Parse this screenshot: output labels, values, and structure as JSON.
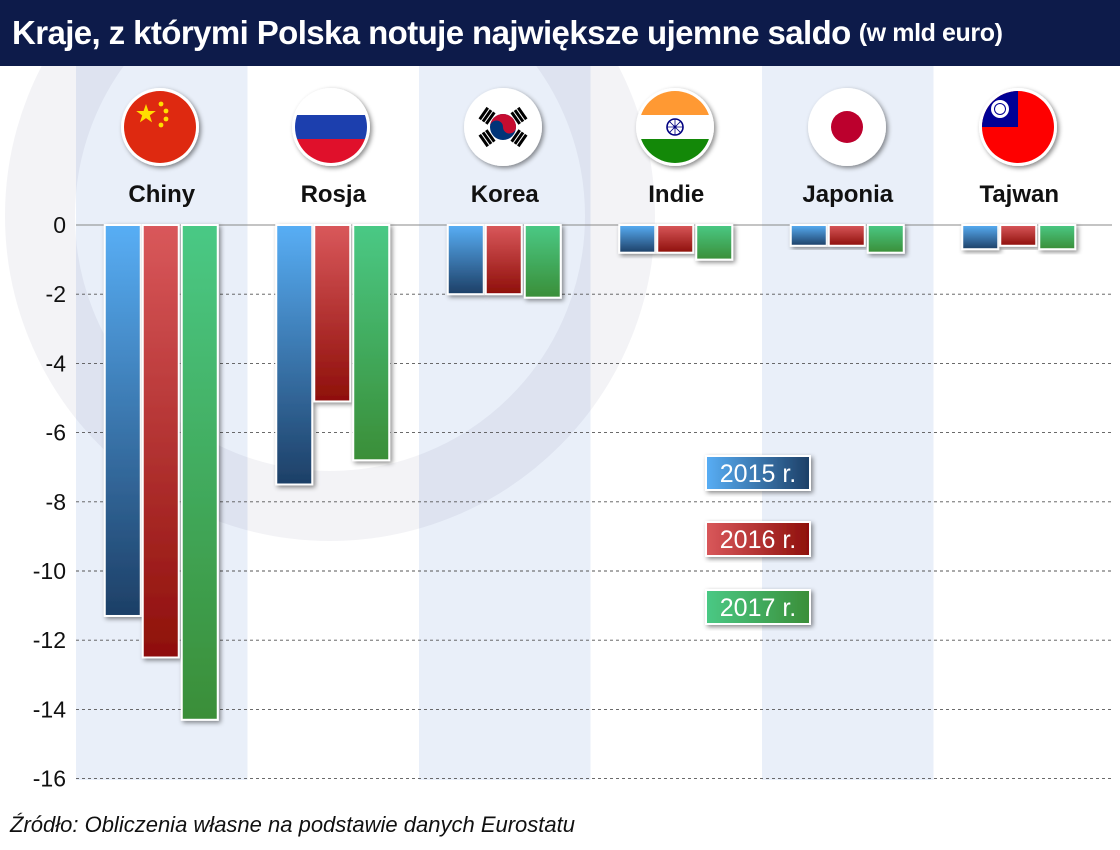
{
  "header": {
    "title": "Kraje, z którymi Polska notuje największe ujemne saldo",
    "unit": "(w mld euro)"
  },
  "source": "Źródło: Obliczenia własne na podstawie danych Eurostatu",
  "chart_data": {
    "type": "bar",
    "categories": [
      "Chiny",
      "Rosja",
      "Korea",
      "Indie",
      "Japonia",
      "Tajwan"
    ],
    "flags": [
      "china-flag-icon",
      "russia-flag-icon",
      "south-korea-flag-icon",
      "india-flag-icon",
      "japan-flag-icon",
      "taiwan-flag-icon"
    ],
    "series": [
      {
        "name": "2015 r.",
        "color": "#3d8fd8",
        "values": [
          -11.3,
          -7.5,
          -2.0,
          -0.8,
          -0.6,
          -0.7
        ]
      },
      {
        "name": "2016 r.",
        "color": "#c0393b",
        "values": [
          -12.5,
          -5.1,
          -2.0,
          -0.8,
          -0.6,
          -0.6
        ]
      },
      {
        "name": "2017 r.",
        "color": "#3fae6a",
        "values": [
          -14.3,
          -6.8,
          -2.1,
          -1.0,
          -0.8,
          -0.7
        ]
      }
    ],
    "ylim": [
      -16,
      0
    ],
    "yticks": [
      0,
      -2,
      -4,
      -6,
      -8,
      -10,
      -12,
      -14,
      -16
    ],
    "grid": true,
    "legend_position": "right"
  }
}
